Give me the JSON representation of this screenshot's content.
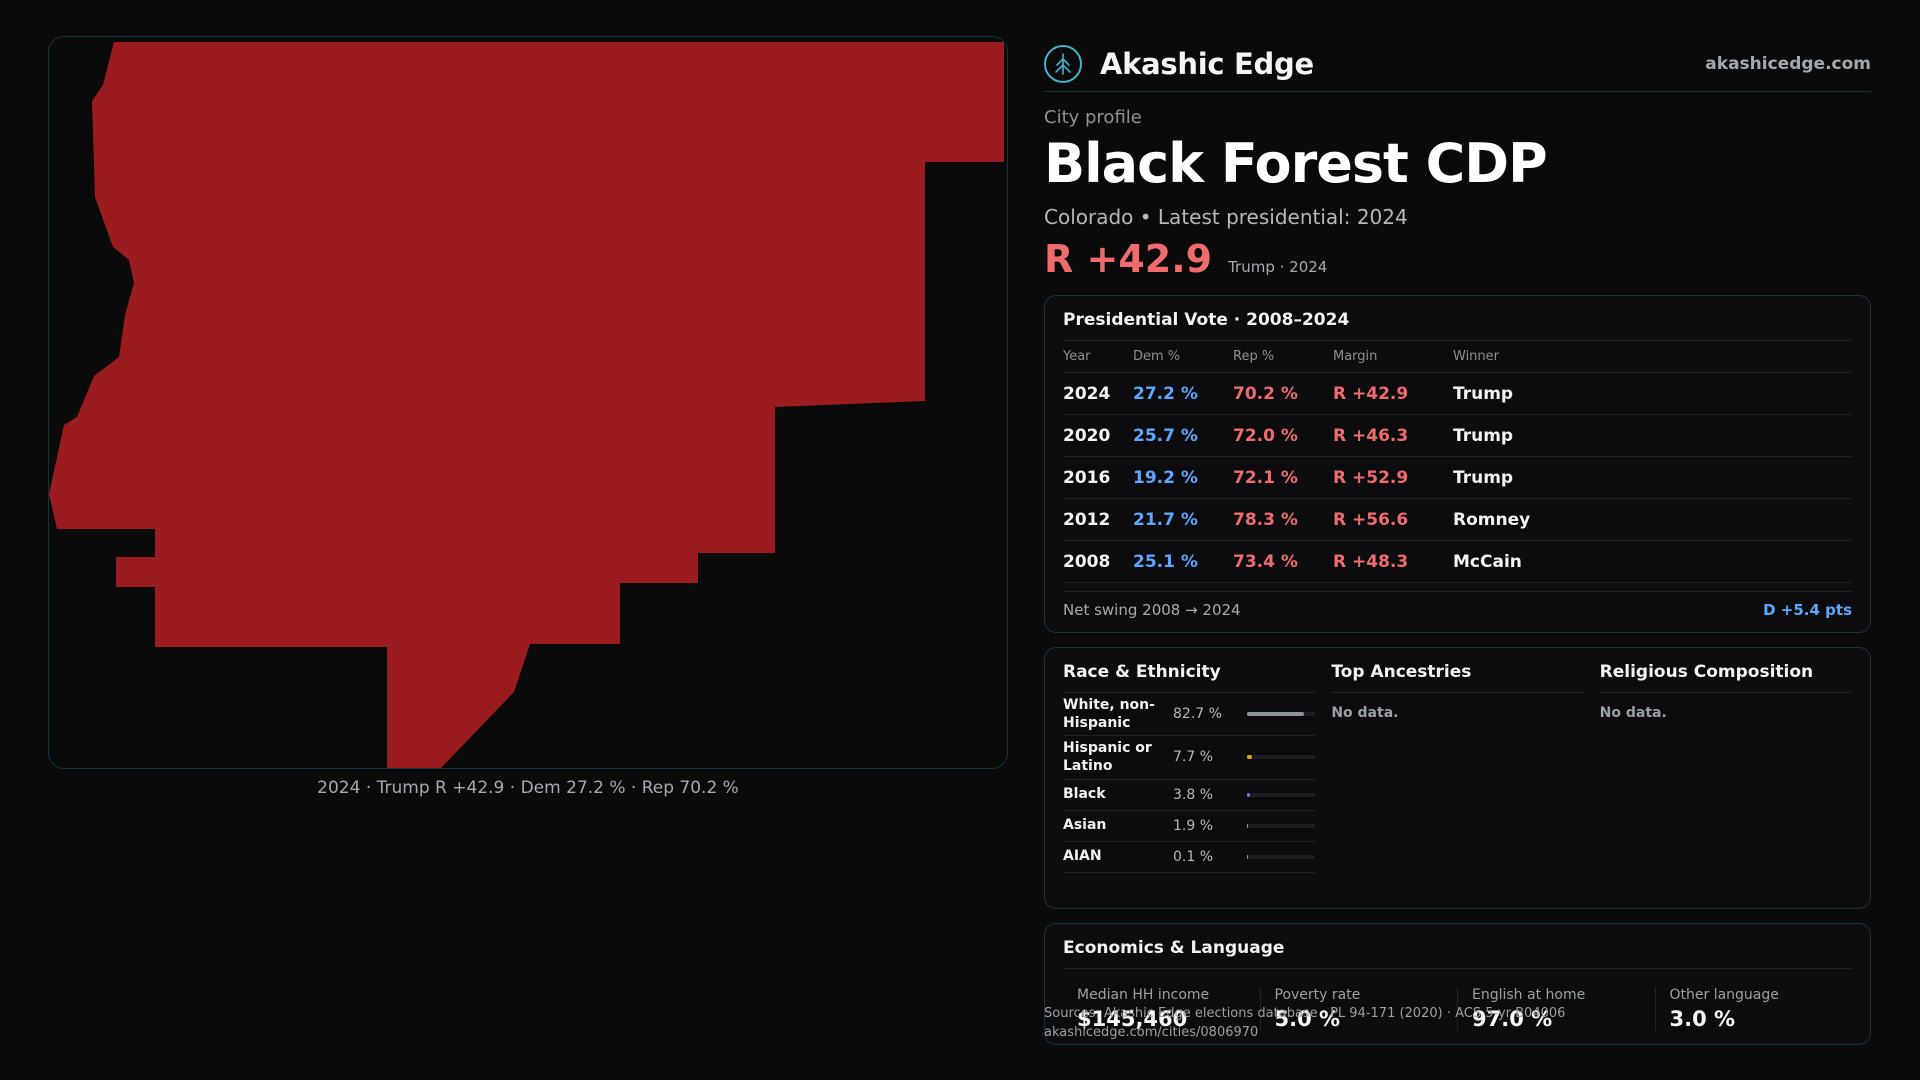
{
  "map": {
    "caption": "2024 · Trump R +42.9 · Dem 27.2 % · Rep 70.2 %",
    "fill_color": "#9b1c1f"
  },
  "brand": {
    "name": "Akashic Edge",
    "url": "akashicedge.com",
    "logo_icon": "tree-icon",
    "accent": "#3fb6c8"
  },
  "profile": {
    "kicker": "City profile",
    "title": "Black Forest CDP",
    "subtitle": "Colorado • Latest presidential: 2024",
    "margin": "R +42.9",
    "margin_detail": "Trump · 2024"
  },
  "presidential": {
    "title": "Presidential Vote · 2008–2024",
    "columns": [
      "Year",
      "Dem %",
      "Rep %",
      "Margin",
      "Winner"
    ],
    "rows": [
      {
        "year": "2024",
        "dem": "27.2 %",
        "rep": "70.2 %",
        "margin": "R +42.9",
        "winner": "Trump"
      },
      {
        "year": "2020",
        "dem": "25.7 %",
        "rep": "72.0 %",
        "margin": "R +46.3",
        "winner": "Trump"
      },
      {
        "year": "2016",
        "dem": "19.2 %",
        "rep": "72.1 %",
        "margin": "R +52.9",
        "winner": "Trump"
      },
      {
        "year": "2012",
        "dem": "21.7 %",
        "rep": "78.3 %",
        "margin": "R +56.6",
        "winner": "Romney"
      },
      {
        "year": "2008",
        "dem": "25.1 %",
        "rep": "73.4 %",
        "margin": "R +48.3",
        "winner": "McCain"
      }
    ],
    "swing_label": "Net swing 2008 → 2024",
    "swing_value": "D +5.4 pts"
  },
  "race": {
    "title": "Race & Ethnicity",
    "rows": [
      {
        "label": "White, non-Hispanic",
        "pct": "82.7 %",
        "value": 82.7,
        "color": "#8e959a"
      },
      {
        "label": "Hispanic or Latino",
        "pct": "7.7 %",
        "value": 7.7,
        "color": "#f0a020"
      },
      {
        "label": "Black",
        "pct": "3.8 %",
        "value": 3.8,
        "color": "#7a6cf0"
      },
      {
        "label": "Asian",
        "pct": "1.9 %",
        "value": 1.9,
        "color": "#3fb6c8"
      },
      {
        "label": "AIAN",
        "pct": "0.1 %",
        "value": 0.1,
        "color": "#8e959a"
      }
    ]
  },
  "ancestries": {
    "title": "Top Ancestries",
    "empty": "No data."
  },
  "religion": {
    "title": "Religious Composition",
    "empty": "No data."
  },
  "economics": {
    "title": "Economics & Language",
    "cells": [
      {
        "label": "Median HH income",
        "value": "$145,460"
      },
      {
        "label": "Poverty rate",
        "value": "5.0 %"
      },
      {
        "label": "English at home",
        "value": "97.0 %"
      },
      {
        "label": "Other language",
        "value": "3.0 %"
      }
    ]
  },
  "source": {
    "line1": "Sources: Akashic Edge elections database · PL 94-171 (2020) · ACS 5-yr B04006",
    "line2": "akashicedge.com/cities/0806970"
  }
}
